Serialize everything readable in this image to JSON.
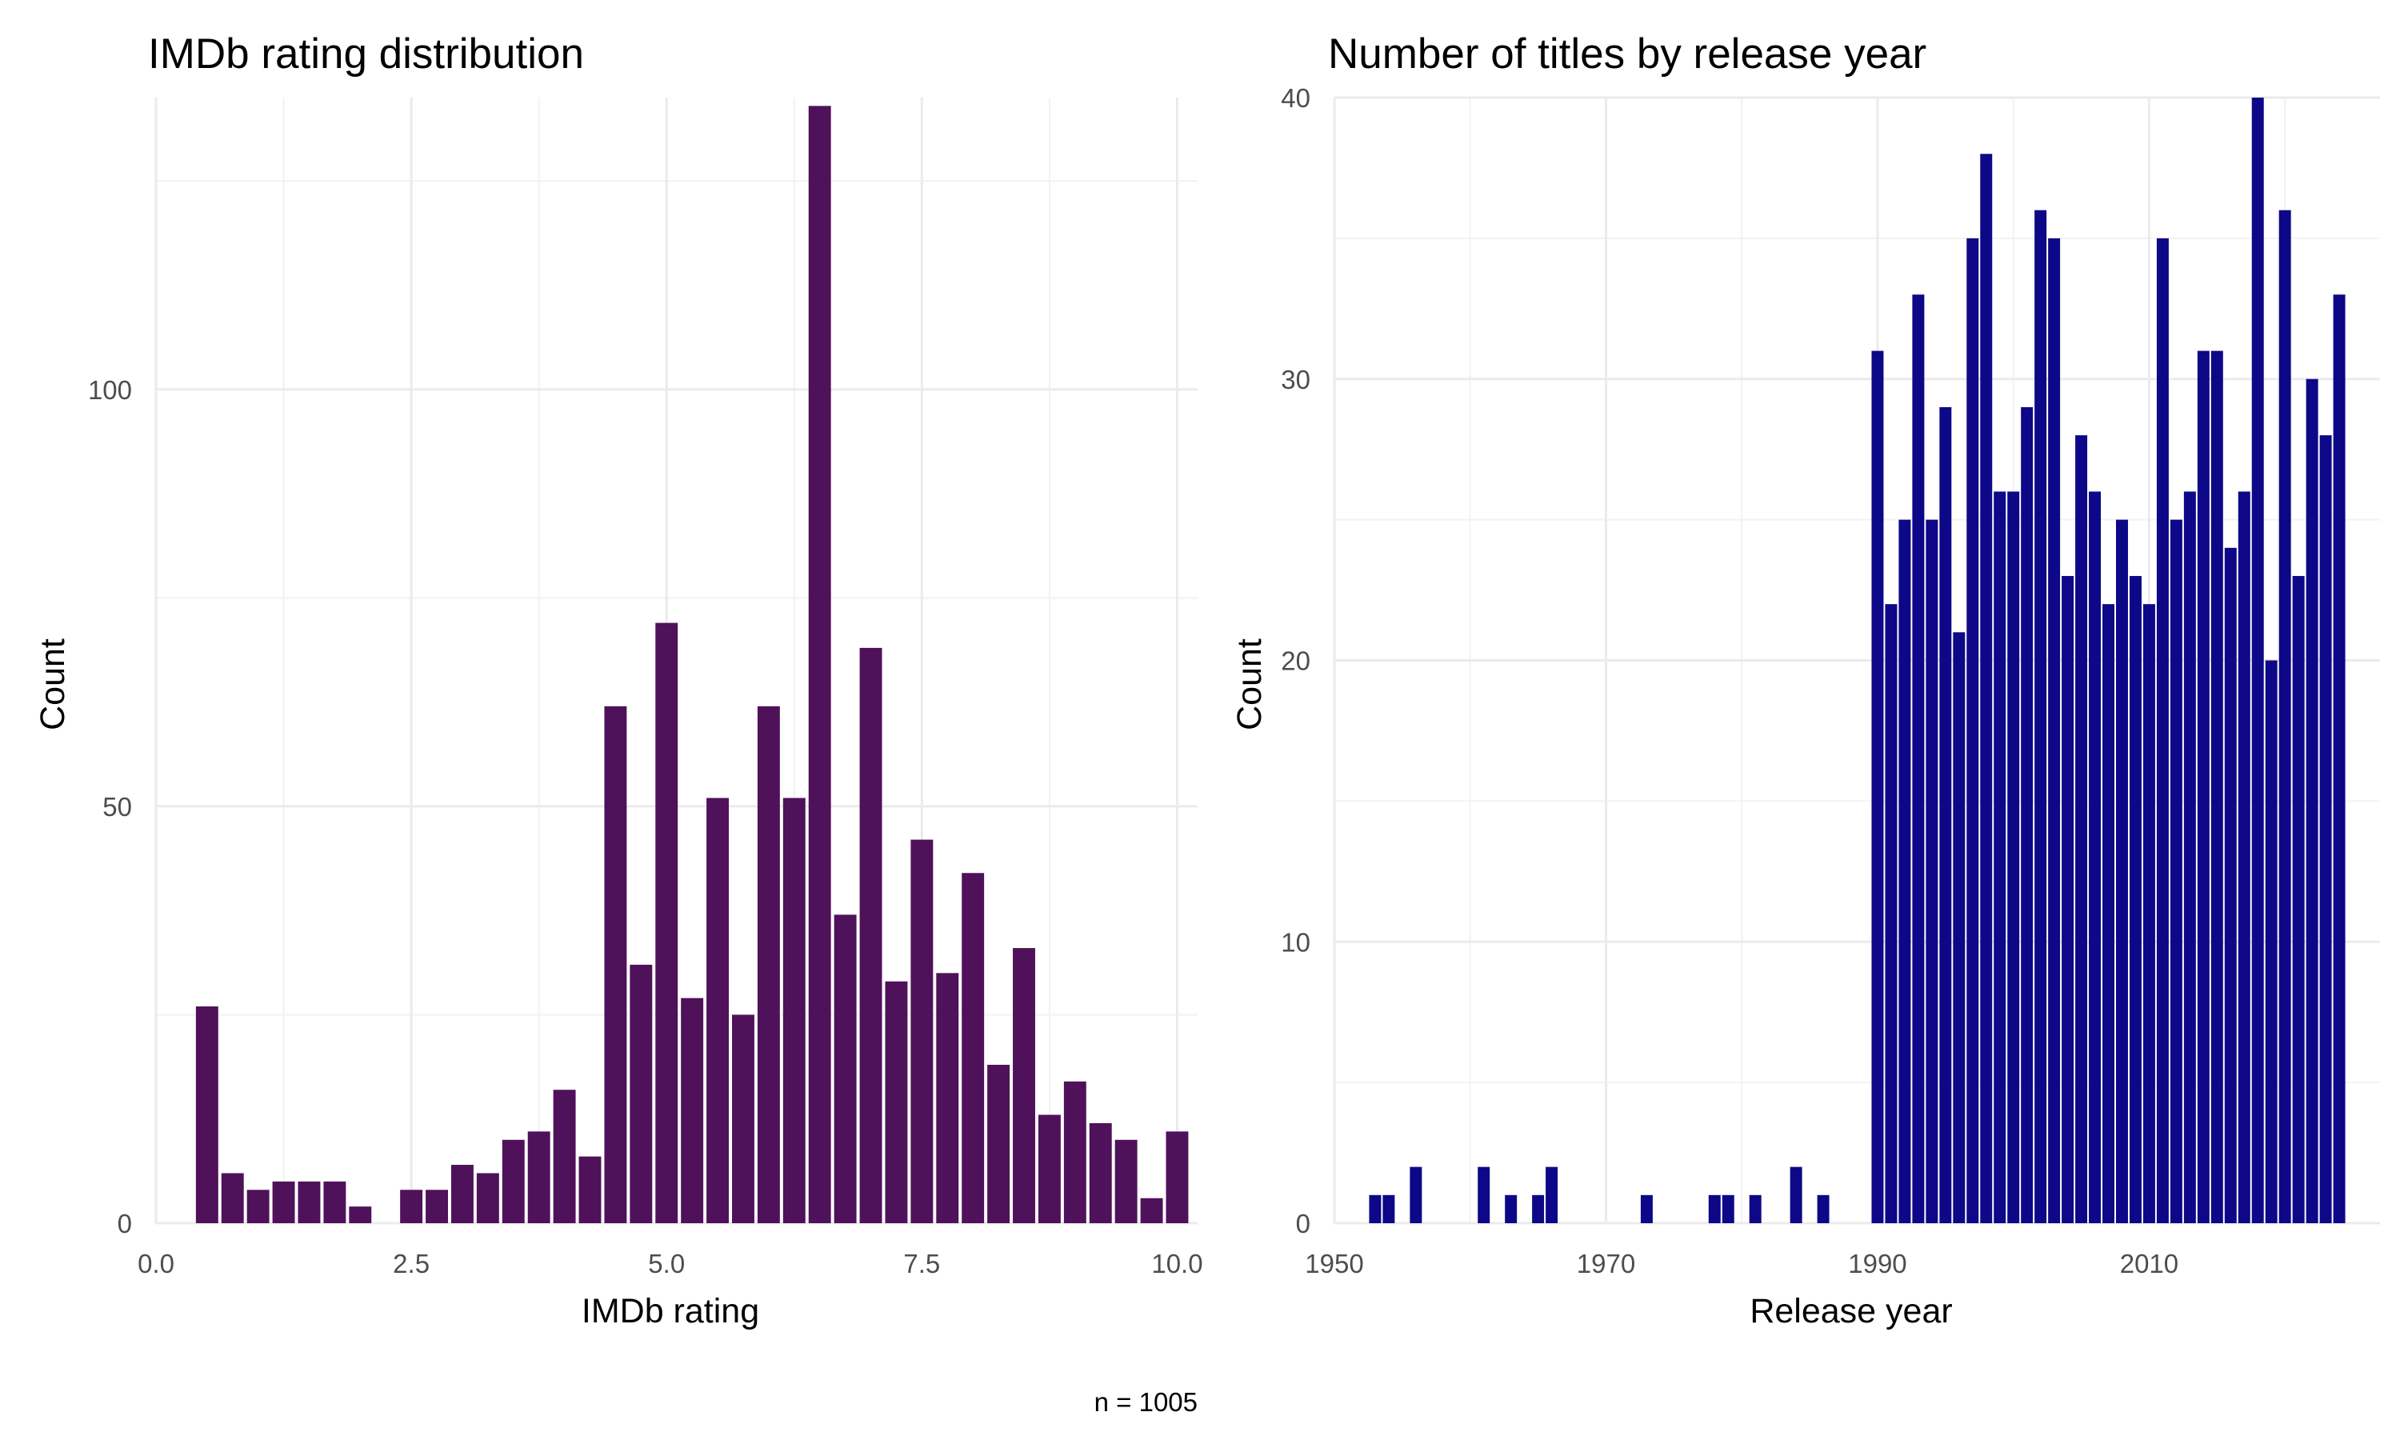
{
  "chart_data": [
    {
      "type": "bar",
      "title": "IMDb rating distribution",
      "xlabel": "IMDb rating",
      "ylabel": "Count",
      "caption": "n = 1005",
      "bar_color": "#4F1159",
      "bin_width": 0.25,
      "xlim": [
        0,
        10.2
      ],
      "ylim": [
        0,
        135
      ],
      "x_ticks": [
        0,
        2.5,
        5.0,
        7.5,
        10.0
      ],
      "x_tick_labels": [
        "0.0",
        "2.5",
        "5.0",
        "7.5",
        "10.0"
      ],
      "y_ticks": [
        0,
        50,
        100
      ],
      "y_tick_labels": [
        "0",
        "50",
        "100"
      ],
      "grid": true,
      "x": [
        0.5,
        0.75,
        1.0,
        1.25,
        1.5,
        1.75,
        2.0,
        2.5,
        2.75,
        3.0,
        3.25,
        3.5,
        3.75,
        4.0,
        4.25,
        4.5,
        4.75,
        5.0,
        5.25,
        5.5,
        5.75,
        6.0,
        6.25,
        6.5,
        6.75,
        7.0,
        7.25,
        7.5,
        7.75,
        8.0,
        8.25,
        8.5,
        8.75,
        9.0,
        9.25,
        9.5,
        9.75,
        10.0
      ],
      "values": [
        26,
        6,
        4,
        5,
        5,
        5,
        2,
        4,
        4,
        7,
        6,
        10,
        11,
        16,
        8,
        62,
        31,
        72,
        27,
        51,
        25,
        62,
        51,
        134,
        37,
        69,
        29,
        46,
        30,
        42,
        19,
        33,
        13,
        17,
        12,
        10,
        3,
        11
      ]
    },
    {
      "type": "bar",
      "title": "Number of titles by release year",
      "xlabel": "Release year",
      "ylabel": "Count",
      "bar_color": "#0D0887",
      "xlim": [
        1950,
        2027
      ],
      "ylim": [
        0,
        40
      ],
      "x_ticks": [
        1950,
        1970,
        1990,
        2010
      ],
      "x_tick_labels": [
        "1950",
        "1970",
        "1990",
        "2010"
      ],
      "y_ticks": [
        0,
        10,
        20,
        30,
        40
      ],
      "y_tick_labels": [
        "0",
        "10",
        "20",
        "30",
        "40"
      ],
      "grid": true,
      "x": [
        1953,
        1954,
        1956,
        1961,
        1963,
        1965,
        1966,
        1973,
        1978,
        1979,
        1981,
        1984,
        1986,
        1990,
        1991,
        1992,
        1993,
        1994,
        1995,
        1996,
        1997,
        1998,
        1999,
        2000,
        2001,
        2002,
        2003,
        2004,
        2005,
        2006,
        2007,
        2008,
        2009,
        2010,
        2011,
        2012,
        2013,
        2014,
        2015,
        2016,
        2017,
        2018,
        2019,
        2020,
        2021,
        2022,
        2023,
        2024
      ],
      "values": [
        1,
        1,
        2,
        2,
        1,
        1,
        2,
        1,
        1,
        1,
        1,
        2,
        1,
        31,
        22,
        25,
        33,
        25,
        29,
        21,
        35,
        38,
        26,
        26,
        29,
        36,
        35,
        23,
        28,
        26,
        22,
        25,
        23,
        22,
        35,
        25,
        26,
        31,
        31,
        24,
        26,
        40,
        20,
        36,
        23,
        30,
        28,
        33
      ]
    }
  ]
}
